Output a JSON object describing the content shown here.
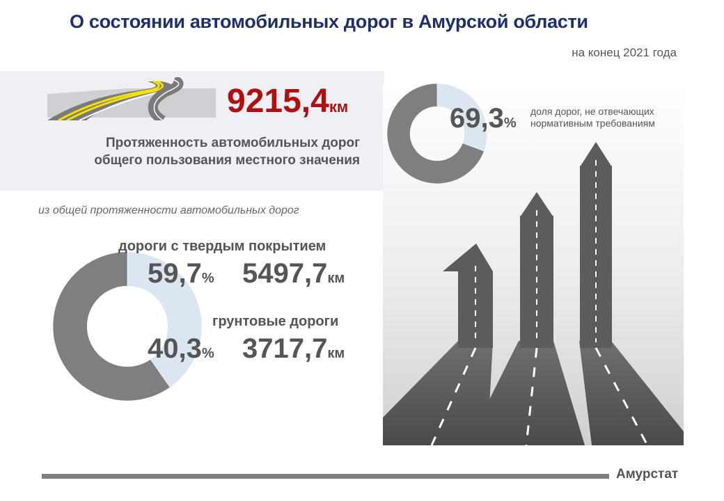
{
  "header": {
    "title": "О состоянии автомобильных дорог в Амурской области",
    "subtitle": "на конец 2021 года"
  },
  "summary": {
    "total_value": "9215,4",
    "total_unit": "км",
    "total_label_line1": "Протяженность автомобильных дорог",
    "total_label_line2": "общего пользования местного значения"
  },
  "breakdown": {
    "note": "из общей протяженности автомобильных дорог",
    "paved_label": "дороги с твердым покрытием",
    "paved_pct": "59,7",
    "paved_km": "5497,7",
    "dirt_label": "грунтовые дороги",
    "dirt_pct": "40,3",
    "dirt_km": "3717,7",
    "pct_unit": "%",
    "km_unit": "км"
  },
  "share": {
    "pct": "69,3",
    "pct_unit": "%",
    "desc_line1": "доля дорог, не отвечающих",
    "desc_line2": "нормативным требованиям"
  },
  "footer": {
    "source": "Амурстат"
  },
  "colors": {
    "title": "#1f2f6e",
    "accent_red": "#b30d0d",
    "dark_slice": "#7f7f7f",
    "light_slice": "#dce6f1",
    "panel": "#eef0f6"
  },
  "chart_data": [
    {
      "type": "pie",
      "donut": true,
      "categories": [
        "дороги с твердым покрытием",
        "грунтовые дороги"
      ],
      "values": [
        59.7,
        40.3
      ],
      "absolute_values_km": [
        5497.7,
        3717.7
      ],
      "colors": [
        "#7f7f7f",
        "#dce6f1"
      ]
    },
    {
      "type": "pie",
      "donut": true,
      "categories": [
        "доля дорог, не отвечающих нормативным требованиям",
        ""
      ],
      "values": [
        69.3,
        30.7
      ],
      "colors": [
        "#7f7f7f",
        "#dce6f1"
      ]
    }
  ]
}
